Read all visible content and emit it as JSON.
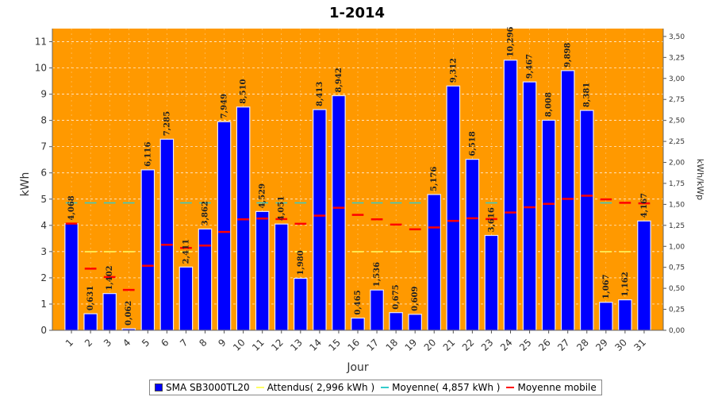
{
  "chart_data": {
    "type": "bar",
    "title": "1-2014",
    "xlabel": "Jour",
    "ylabel": "kWh",
    "y2label": "kWh/kWp",
    "ylim": [
      0,
      11.5
    ],
    "y2lim": [
      0,
      3.59375
    ],
    "yticks": [
      "0",
      "1",
      "2",
      "3",
      "4",
      "5",
      "6",
      "7",
      "8",
      "9",
      "10",
      "11"
    ],
    "y2ticks": [
      "0,00",
      "0,25",
      "0,50",
      "0,75",
      "1,00",
      "1,25",
      "1,50",
      "1,75",
      "2,00",
      "2,25",
      "2,50",
      "2,75",
      "3,00",
      "3,25",
      "3,50"
    ],
    "grid": true,
    "categories": [
      "1",
      "2",
      "3",
      "4",
      "5",
      "6",
      "7",
      "8",
      "9",
      "10",
      "11",
      "12",
      "13",
      "14",
      "15",
      "16",
      "17",
      "18",
      "19",
      "20",
      "21",
      "22",
      "23",
      "24",
      "25",
      "26",
      "27",
      "28",
      "29",
      "30",
      "31"
    ],
    "series": [
      {
        "name": "SMA SB3000TL20",
        "kind": "bar",
        "values": [
          4.068,
          0.631,
          1.402,
          0.062,
          6.116,
          7.285,
          2.411,
          3.862,
          7.949,
          8.51,
          4.529,
          4.051,
          1.98,
          8.413,
          8.942,
          0.465,
          1.536,
          0.675,
          0.609,
          5.176,
          9.312,
          6.518,
          3.616,
          10.296,
          9.467,
          8.008,
          9.898,
          8.381,
          1.067,
          1.162,
          4.167
        ],
        "labels": [
          "4,068",
          "0,631",
          "1,402",
          "0,062",
          "6,116",
          "7,285",
          "2,411",
          "3,862",
          "7,949",
          "8,510",
          "4,529",
          "4,051",
          "1,980",
          "8,413",
          "8,942",
          "0,465",
          "1,536",
          "0,675",
          "0,609",
          "5,176",
          "9,312",
          "6,518",
          "3,616",
          "10,296",
          "9,467",
          "8,008",
          "9,898",
          "8,381",
          "1,067",
          "1,162",
          "4,167"
        ]
      },
      {
        "name": "Attendus( 2,996 kWh )",
        "kind": "segments",
        "value": 2.996
      },
      {
        "name": "Moyenne( 4,857 kWh )",
        "kind": "segments",
        "value": 4.857
      },
      {
        "name": "Moyenne mobile",
        "kind": "segments",
        "values": [
          4.068,
          2.35,
          2.03,
          1.54,
          2.46,
          3.26,
          3.14,
          3.23,
          3.75,
          4.23,
          4.26,
          4.24,
          4.06,
          4.37,
          4.67,
          4.4,
          4.23,
          4.03,
          3.85,
          3.92,
          4.17,
          4.27,
          4.24,
          4.49,
          4.69,
          4.82,
          5.01,
          5.13,
          4.99,
          4.86,
          4.84
        ]
      }
    ],
    "colors": {
      "plot_bg": "#ff9900",
      "bar": "#0000ff",
      "expected": "#ffff66",
      "average": "#33cccc",
      "moving_average": "#ff0000"
    }
  },
  "legend": {
    "items": [
      {
        "label": "SMA SB3000TL20",
        "color": "#0000ff",
        "kind": "box"
      },
      {
        "label": "Attendus( 2,996 kWh )",
        "color": "#ffff66",
        "kind": "line"
      },
      {
        "label": "Moyenne( 4,857 kWh )",
        "color": "#33cccc",
        "kind": "line"
      },
      {
        "label": "Moyenne mobile",
        "color": "#ff0000",
        "kind": "line"
      }
    ]
  }
}
